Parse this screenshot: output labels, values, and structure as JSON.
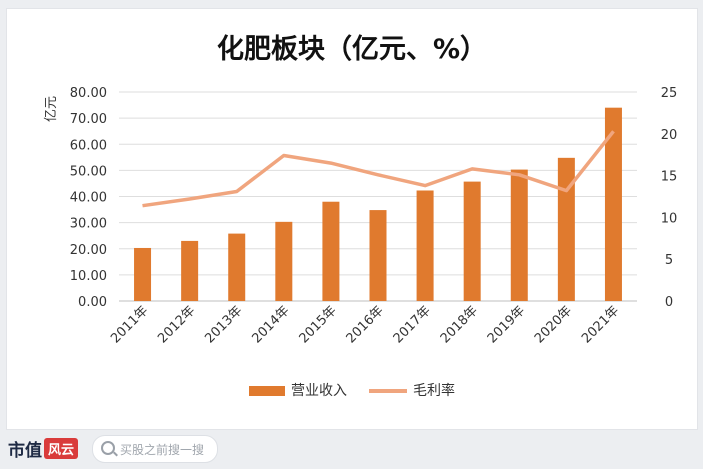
{
  "chart_data": {
    "type": "bar+line",
    "title": "化肥板块（亿元、%）",
    "ylabel": "亿元",
    "categories": [
      "2011年",
      "2012年",
      "2013年",
      "2014年",
      "2015年",
      "2016年",
      "2017年",
      "2018年",
      "2019年",
      "2020年",
      "2021年"
    ],
    "series": [
      {
        "name": "营业收入",
        "type": "bar",
        "axis": "left",
        "color": "#e07a2e",
        "values": [
          20.3,
          23.0,
          25.8,
          30.3,
          38.0,
          34.8,
          42.3,
          45.7,
          50.3,
          54.8,
          74.0
        ]
      },
      {
        "name": "毛利率",
        "type": "line",
        "axis": "right",
        "color": "#f0a57e",
        "values": [
          11.4,
          12.2,
          13.1,
          17.4,
          16.5,
          15.1,
          13.8,
          15.8,
          15.1,
          13.2,
          20.3
        ]
      }
    ],
    "ylim_left": [
      0,
      80
    ],
    "ylim_right": [
      0,
      25
    ],
    "yticks_left": [
      "0.00",
      "10.00",
      "20.00",
      "30.00",
      "40.00",
      "50.00",
      "60.00",
      "70.00",
      "80.00"
    ],
    "yticks_right": [
      "0",
      "5",
      "10",
      "15",
      "20",
      "25"
    ],
    "grid": true,
    "legend_position": "bottom"
  },
  "footer": {
    "brand": "市值",
    "brand_badge": "风云",
    "search_placeholder": "买股之前搜一搜"
  }
}
